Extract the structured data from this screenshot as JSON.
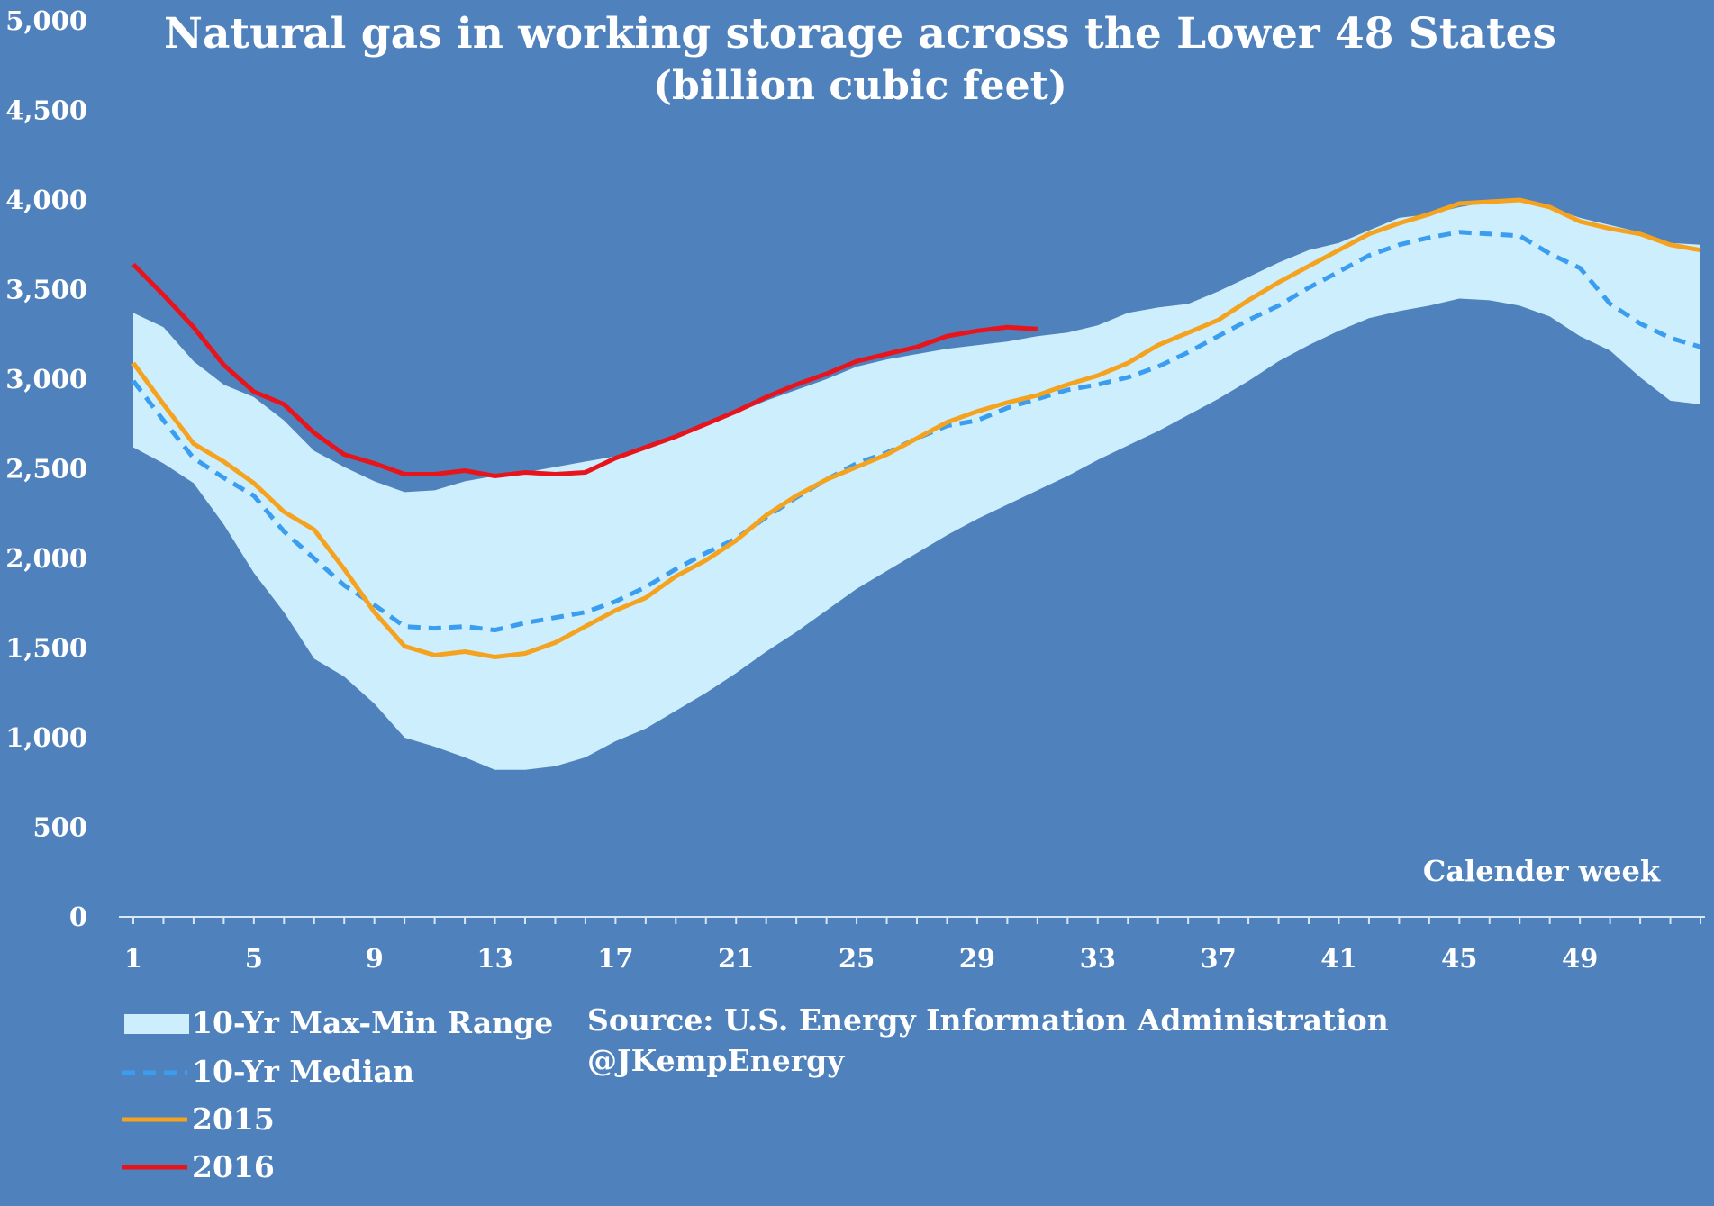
{
  "chart_data": {
    "type": "area",
    "title": "Natural gas in working storage across the Lower 48 States",
    "subtitle": "(billion cubic feet)",
    "xlabel": "Calender week",
    "ylabel": "",
    "ylim": [
      0,
      5000
    ],
    "xlim": [
      1,
      53
    ],
    "yticks": [
      "0",
      "500",
      "1,000",
      "1,500",
      "2,000",
      "2,500",
      "3,000",
      "3,500",
      "4,000",
      "4,500",
      "5,000"
    ],
    "xticks": [
      "1",
      "5",
      "9",
      "13",
      "17",
      "21",
      "25",
      "29",
      "33",
      "37",
      "41",
      "45",
      "49"
    ],
    "grid": false,
    "legend_position": "bottom-left",
    "colors": {
      "background": "#4f81bd",
      "range": "#cdeefc",
      "median": "#3b9df0",
      "y2015": "#f5a31f",
      "y2016": "#e8141c"
    },
    "range": {
      "name": "10-Yr Max-Min Range",
      "weeks": [
        1,
        2,
        3,
        4,
        5,
        6,
        7,
        8,
        9,
        10,
        11,
        12,
        13,
        14,
        15,
        16,
        17,
        18,
        19,
        20,
        21,
        22,
        23,
        24,
        25,
        26,
        27,
        28,
        29,
        30,
        31,
        32,
        33,
        34,
        35,
        36,
        37,
        38,
        39,
        40,
        41,
        42,
        43,
        44,
        45,
        46,
        47,
        48,
        49,
        50,
        51,
        52,
        53
      ],
      "max": [
        3370,
        3290,
        3100,
        2970,
        2900,
        2770,
        2600,
        2510,
        2430,
        2370,
        2380,
        2430,
        2460,
        2480,
        2510,
        2540,
        2570,
        2620,
        2680,
        2740,
        2810,
        2880,
        2940,
        3000,
        3070,
        3110,
        3140,
        3170,
        3190,
        3210,
        3240,
        3260,
        3300,
        3370,
        3400,
        3420,
        3490,
        3570,
        3650,
        3720,
        3760,
        3830,
        3900,
        3920,
        3960,
        3990,
        4000,
        3960,
        3900,
        3860,
        3820,
        3760,
        3750
      ],
      "min": [
        2620,
        2530,
        2420,
        2190,
        1920,
        1700,
        1440,
        1340,
        1190,
        1000,
        950,
        890,
        820,
        820,
        840,
        890,
        980,
        1050,
        1150,
        1250,
        1360,
        1480,
        1590,
        1710,
        1830,
        1930,
        2030,
        2130,
        2220,
        2300,
        2380,
        2460,
        2550,
        2630,
        2710,
        2800,
        2890,
        2990,
        3100,
        3190,
        3270,
        3340,
        3380,
        3410,
        3450,
        3440,
        3410,
        3350,
        3240,
        3160,
        3010,
        2880,
        2860
      ]
    },
    "series": [
      {
        "name": "10-Yr Median",
        "x": [
          1,
          2,
          3,
          4,
          5,
          6,
          7,
          8,
          9,
          10,
          11,
          12,
          13,
          14,
          15,
          16,
          17,
          18,
          19,
          20,
          21,
          22,
          23,
          24,
          25,
          26,
          27,
          28,
          29,
          30,
          31,
          32,
          33,
          34,
          35,
          36,
          37,
          38,
          39,
          40,
          41,
          42,
          43,
          44,
          45,
          46,
          47,
          48,
          49,
          50,
          51,
          52,
          53
        ],
        "values": [
          2990,
          2770,
          2560,
          2450,
          2350,
          2150,
          2000,
          1850,
          1740,
          1620,
          1610,
          1620,
          1600,
          1640,
          1670,
          1700,
          1760,
          1840,
          1940,
          2030,
          2110,
          2230,
          2340,
          2440,
          2530,
          2590,
          2670,
          2740,
          2770,
          2840,
          2890,
          2940,
          2970,
          3010,
          3070,
          3150,
          3240,
          3330,
          3410,
          3510,
          3600,
          3690,
          3750,
          3790,
          3820,
          3810,
          3800,
          3700,
          3620,
          3420,
          3310,
          3230,
          3180
        ]
      },
      {
        "name": "2015",
        "x": [
          1,
          2,
          3,
          4,
          5,
          6,
          7,
          8,
          9,
          10,
          11,
          12,
          13,
          14,
          15,
          16,
          17,
          18,
          19,
          20,
          21,
          22,
          23,
          24,
          25,
          26,
          27,
          28,
          29,
          30,
          31,
          32,
          33,
          34,
          35,
          36,
          37,
          38,
          39,
          40,
          41,
          42,
          43,
          44,
          45,
          46,
          47,
          48,
          49,
          50,
          51,
          52,
          53
        ],
        "values": [
          3090,
          2860,
          2640,
          2540,
          2420,
          2260,
          2160,
          1940,
          1700,
          1510,
          1460,
          1480,
          1450,
          1470,
          1530,
          1620,
          1710,
          1780,
          1900,
          1990,
          2100,
          2240,
          2350,
          2440,
          2510,
          2580,
          2670,
          2760,
          2820,
          2870,
          2910,
          2970,
          3020,
          3090,
          3190,
          3260,
          3330,
          3440,
          3540,
          3630,
          3720,
          3810,
          3870,
          3920,
          3980,
          3990,
          4000,
          3960,
          3880,
          3840,
          3810,
          3750,
          3720
        ]
      },
      {
        "name": "2016",
        "x": [
          1,
          2,
          3,
          4,
          5,
          6,
          7,
          8,
          9,
          10,
          11,
          12,
          13,
          14,
          15,
          16,
          17,
          18,
          19,
          20,
          21,
          22,
          23,
          24,
          25,
          26,
          27,
          28,
          29,
          30,
          31
        ],
        "values": [
          3640,
          3470,
          3290,
          3080,
          2930,
          2860,
          2700,
          2580,
          2530,
          2470,
          2470,
          2490,
          2460,
          2480,
          2470,
          2480,
          2560,
          2620,
          2680,
          2750,
          2820,
          2900,
          2970,
          3030,
          3100,
          3140,
          3180,
          3240,
          3270,
          3290,
          3280
        ]
      }
    ],
    "legend": [
      {
        "label": "10-Yr Max-Min Range",
        "kind": "area"
      },
      {
        "label": "10-Yr Median",
        "kind": "dashed"
      },
      {
        "label": "2015",
        "kind": "line"
      },
      {
        "label": "2016",
        "kind": "line"
      }
    ],
    "annotations": [
      "Source: U.S. Energy Information Administration",
      "@JKempEnergy"
    ]
  }
}
